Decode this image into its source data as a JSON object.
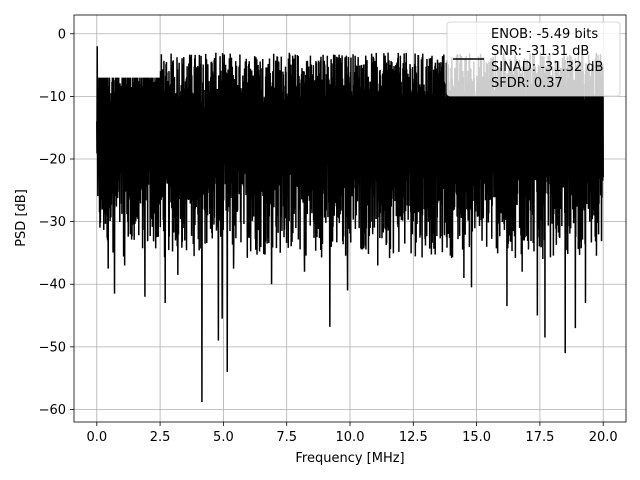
{
  "chart_data": {
    "type": "line",
    "title": "",
    "xlabel": "Frequency [MHz]",
    "ylabel": "PSD [dB]",
    "xlim": [
      -0.9,
      20.9
    ],
    "ylim": [
      -62,
      3
    ],
    "xticks": [
      0.0,
      2.5,
      5.0,
      7.5,
      10.0,
      12.5,
      15.0,
      17.5,
      20.0
    ],
    "xtick_labels": [
      "0.0",
      "2.5",
      "5.0",
      "7.5",
      "10.0",
      "12.5",
      "15.0",
      "17.5",
      "20.0"
    ],
    "yticks": [
      0,
      -10,
      -20,
      -30,
      -40,
      -50,
      -60
    ],
    "ytick_labels": [
      "0",
      "−10",
      "−20",
      "−30",
      "−40",
      "−50",
      "−60"
    ],
    "grid": true,
    "legend_position": "top-right",
    "series_color": "#000000",
    "legend": {
      "lines": [
        "ENOB: -5.49 bits",
        "SNR: -31.31 dB",
        "SINAD: -31.32 dB",
        "SFDR: 0.37"
      ]
    },
    "envelope": {
      "x_start": 0.0,
      "x_end": 20.0,
      "dc_peak": -2,
      "upper_band": [
        -12,
        -3
      ],
      "lower_band": [
        -36,
        -20
      ]
    },
    "deep_dips": [
      {
        "x": 0.45,
        "y": -37.5
      },
      {
        "x": 0.7,
        "y": -41.5
      },
      {
        "x": 1.1,
        "y": -37
      },
      {
        "x": 1.9,
        "y": -42
      },
      {
        "x": 2.7,
        "y": -43
      },
      {
        "x": 3.2,
        "y": -38.5
      },
      {
        "x": 4.15,
        "y": -58.8
      },
      {
        "x": 4.8,
        "y": -49
      },
      {
        "x": 4.95,
        "y": -45.5
      },
      {
        "x": 5.15,
        "y": -54
      },
      {
        "x": 5.4,
        "y": -37.5
      },
      {
        "x": 6.9,
        "y": -40
      },
      {
        "x": 8.2,
        "y": -38
      },
      {
        "x": 9.2,
        "y": -46.8
      },
      {
        "x": 9.9,
        "y": -41
      },
      {
        "x": 11.1,
        "y": -37
      },
      {
        "x": 14.5,
        "y": -39
      },
      {
        "x": 14.8,
        "y": -40.5
      },
      {
        "x": 16.2,
        "y": -43.5
      },
      {
        "x": 16.8,
        "y": -38
      },
      {
        "x": 17.4,
        "y": -45
      },
      {
        "x": 17.7,
        "y": -48.5
      },
      {
        "x": 18.5,
        "y": -51
      },
      {
        "x": 18.9,
        "y": -47
      },
      {
        "x": 19.3,
        "y": -43
      }
    ]
  }
}
